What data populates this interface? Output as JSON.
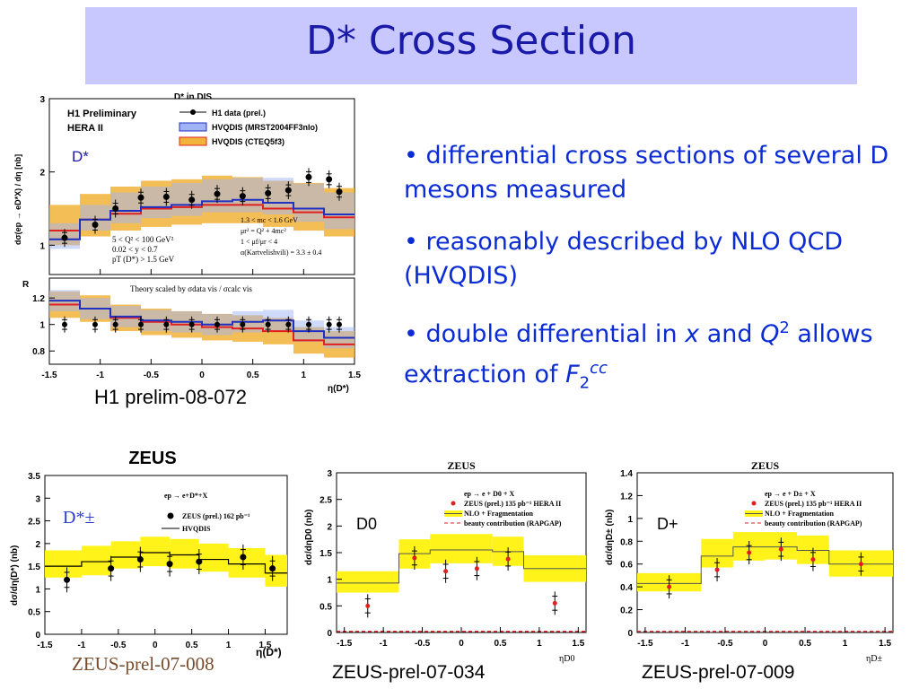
{
  "slide": {
    "title": "D* Cross Section",
    "bullets": [
      {
        "marker": "•",
        "text": "differential cross sections of several D mesons measured"
      },
      {
        "marker": "•",
        "text": "reasonably described by NLO QCD (HVQDIS)"
      },
      {
        "marker": "•",
        "pre": "double differential in ",
        "x": "x",
        "mid": " and ",
        "q": "Q",
        "qsup": "2",
        "post": " allows extraction of ",
        "f": "F",
        "fsub": "2",
        "fsup": "cc"
      }
    ],
    "captions": {
      "h1": "H1 prelim-08-072",
      "zeus_dplus": "ZEUS-prel-07-009",
      "zeus_d0": "ZEUS-prel-07-034",
      "zeus_dstar": "ZEUS-prel-07-008"
    }
  },
  "chart_data": [
    {
      "id": "h1",
      "type": "line",
      "title": "D* in DIS",
      "labels": [
        "H1 Preliminary",
        "HERA II"
      ],
      "particle": "D*",
      "xlabel": "η(D*)",
      "ylabel": "dσ(ep → eD*X) / dη [nb]",
      "xlim": [
        -1.5,
        1.5
      ],
      "xticks": [
        "-1.5",
        "-1",
        "-0.5",
        "0",
        "0.5",
        "1",
        "1.5"
      ],
      "top": {
        "ylim": [
          0.6,
          3.0
        ],
        "yticks": [
          "1",
          "2",
          "3"
        ],
        "legend": [
          "H1 data (prel.)",
          "HVQDIS (MRST2004FF3nlo)",
          "HVQDIS (CTEQ5f3)"
        ],
        "cuts": [
          "5 < Q² < 100 GeV²",
          "0.02 < y < 0.7",
          "pT (D*) > 1.5 GeV"
        ],
        "params": [
          "1.3 < mc < 1.6 GeV",
          "μr² = Q² + 4mc²",
          "1 < μf/μr < 4",
          "α(Kartvelishvili) = 3.3 ± 0.4"
        ],
        "data": {
          "x": [
            -1.35,
            -1.05,
            -0.85,
            -0.6,
            -0.35,
            -0.1,
            0.15,
            0.4,
            0.65,
            0.85,
            1.05,
            1.25,
            1.35
          ],
          "y": [
            1.1,
            1.28,
            1.5,
            1.65,
            1.66,
            1.62,
            1.7,
            1.67,
            1.71,
            1.75,
            1.93,
            1.9,
            1.73
          ]
        },
        "bins": [
          -1.5,
          -1.2,
          -0.9,
          -0.6,
          -0.3,
          0.0,
          0.3,
          0.6,
          0.9,
          1.2,
          1.5
        ],
        "mrst_center": [
          1.08,
          1.35,
          1.47,
          1.52,
          1.55,
          1.6,
          1.62,
          1.58,
          1.5,
          1.42
        ],
        "mrst_band": [
          [
            0.95,
            1.3
          ],
          [
            1.2,
            1.55
          ],
          [
            1.3,
            1.72
          ],
          [
            1.37,
            1.8
          ],
          [
            1.4,
            1.85
          ],
          [
            1.45,
            1.9
          ],
          [
            1.45,
            1.92
          ],
          [
            1.42,
            1.92
          ],
          [
            1.32,
            1.84
          ],
          [
            1.22,
            1.72
          ]
        ],
        "cteq_center": [
          1.2,
          1.35,
          1.43,
          1.5,
          1.52,
          1.55,
          1.55,
          1.5,
          1.45,
          1.38
        ],
        "cteq_band": [
          [
            1.0,
            1.55
          ],
          [
            1.12,
            1.7
          ],
          [
            1.2,
            1.8
          ],
          [
            1.25,
            1.88
          ],
          [
            1.28,
            1.9
          ],
          [
            1.3,
            1.95
          ],
          [
            1.3,
            1.93
          ],
          [
            1.25,
            1.88
          ],
          [
            1.2,
            1.85
          ],
          [
            1.12,
            1.78
          ]
        ]
      },
      "ratio": {
        "ylabel": "R",
        "ylim": [
          0.7,
          1.35
        ],
        "yticks": [
          "0.8",
          "1",
          "1.2"
        ],
        "note": "Theory scaled by σdata vis / σcalc vis",
        "data_x": [
          -1.35,
          -1.05,
          -0.85,
          -0.6,
          -0.35,
          -0.1,
          0.15,
          0.4,
          0.65,
          0.85,
          1.05,
          1.25,
          1.35
        ],
        "data_y": [
          1.0,
          1.0,
          1.0,
          1.0,
          1.0,
          1.0,
          1.0,
          1.0,
          1.0,
          1.0,
          1.0,
          1.0,
          1.0
        ],
        "mrst_center": [
          1.18,
          1.12,
          1.06,
          1.03,
          1.02,
          1.0,
          1.02,
          1.03,
          0.95,
          0.9
        ],
        "cteq_center": [
          1.15,
          1.12,
          1.05,
          1.02,
          1.0,
          0.98,
          0.97,
          0.95,
          0.88,
          0.85
        ]
      }
    },
    {
      "id": "zeus_dstar",
      "type": "line",
      "title": "ZEUS",
      "particle": "D*±",
      "xlabel": "η(D*)",
      "ylabel": "dσ/dη(D*) (nb)",
      "xlim": [
        -1.5,
        1.8
      ],
      "ylim": [
        0,
        3.5
      ],
      "xticks": [
        "-1.5",
        "-1",
        "-0.5",
        "0",
        "0.5",
        "1",
        "1.5"
      ],
      "yticks": [
        "0",
        "0.5",
        "1",
        "1.5",
        "2",
        "2.5",
        "3",
        "3.5"
      ],
      "legend_header": "ep → e+D*+X",
      "legend": [
        "ZEUS (prel.) 162 pb⁻¹",
        "HVQDIS"
      ],
      "bins": [
        -1.5,
        -1.0,
        -0.6,
        -0.2,
        0.2,
        0.6,
        1.0,
        1.5,
        1.8
      ],
      "theory": [
        1.5,
        1.6,
        1.7,
        1.8,
        1.75,
        1.65,
        1.55,
        1.35
      ],
      "band": [
        [
          1.25,
          1.85
        ],
        [
          1.3,
          1.95
        ],
        [
          1.45,
          2.05
        ],
        [
          1.5,
          2.15
        ],
        [
          1.45,
          2.1
        ],
        [
          1.38,
          2.0
        ],
        [
          1.25,
          1.9
        ],
        [
          1.05,
          1.75
        ]
      ],
      "data": {
        "x": [
          -1.2,
          -0.6,
          -0.2,
          0.2,
          0.6,
          1.2,
          1.6
        ],
        "y": [
          1.2,
          1.45,
          1.65,
          1.55,
          1.6,
          1.7,
          1.45
        ]
      }
    },
    {
      "id": "zeus_d0",
      "type": "line",
      "title": "ZEUS",
      "particle": "D0",
      "xlabel": "ηD0",
      "ylabel": "dσ/dηD0 (nb)",
      "xlim": [
        -1.6,
        1.6
      ],
      "ylim": [
        0,
        3
      ],
      "xticks": [
        "-1.5",
        "-1",
        "-0.5",
        "0",
        "0.5",
        "1",
        "1.5"
      ],
      "yticks": [
        "0",
        "0.5",
        "1",
        "1.5",
        "2",
        "2.5",
        "3"
      ],
      "legend": [
        "ep → e + D0 + X",
        "ZEUS (prel.) 135 pb⁻¹ HERA II",
        "NLO + Fragmentation",
        "beauty contribution (RAPGAP)"
      ],
      "bins": [
        -1.6,
        -0.8,
        -0.4,
        0.0,
        0.4,
        0.8,
        1.6
      ],
      "theory": [
        0.93,
        1.48,
        1.55,
        1.55,
        1.52,
        1.2
      ],
      "band": [
        [
          0.75,
          1.15
        ],
        [
          1.2,
          1.75
        ],
        [
          1.3,
          1.85
        ],
        [
          1.3,
          1.85
        ],
        [
          1.25,
          1.8
        ],
        [
          0.95,
          1.45
        ]
      ],
      "beauty": 0.02,
      "data": {
        "x": [
          -1.2,
          -0.6,
          -0.2,
          0.2,
          0.6,
          1.2
        ],
        "y": [
          0.5,
          1.4,
          1.15,
          1.2,
          1.38,
          0.55
        ]
      }
    },
    {
      "id": "zeus_dplus",
      "type": "line",
      "title": "ZEUS",
      "particle": "D+",
      "xlabel": "ηD±",
      "ylabel": "dσ/dηD± (nb)",
      "xlim": [
        -1.6,
        1.6
      ],
      "ylim": [
        0,
        1.4
      ],
      "xticks": [
        "-1.5",
        "-1",
        "-0.5",
        "0",
        "0.5",
        "1",
        "1.5"
      ],
      "yticks": [
        "0",
        "0.2",
        "0.4",
        "0.6",
        "0.8",
        "1",
        "1.2",
        "1.4"
      ],
      "legend": [
        "ep → e + D± + X",
        "ZEUS (prel.) 135 pb⁻¹ HERA II",
        "NLO + Fragmentation",
        "beauty contribution (RAPGAP)"
      ],
      "bins": [
        -1.6,
        -0.8,
        -0.4,
        0.0,
        0.4,
        0.8,
        1.6
      ],
      "theory": [
        0.43,
        0.67,
        0.75,
        0.75,
        0.72,
        0.6
      ],
      "band": [
        [
          0.36,
          0.52
        ],
        [
          0.57,
          0.82
        ],
        [
          0.63,
          0.88
        ],
        [
          0.64,
          0.88
        ],
        [
          0.6,
          0.85
        ],
        [
          0.49,
          0.72
        ]
      ],
      "beauty": 0.01,
      "data": {
        "x": [
          -1.2,
          -0.6,
          -0.2,
          0.2,
          0.6,
          1.2
        ],
        "y": [
          0.4,
          0.55,
          0.7,
          0.73,
          0.64,
          0.6
        ]
      }
    }
  ]
}
